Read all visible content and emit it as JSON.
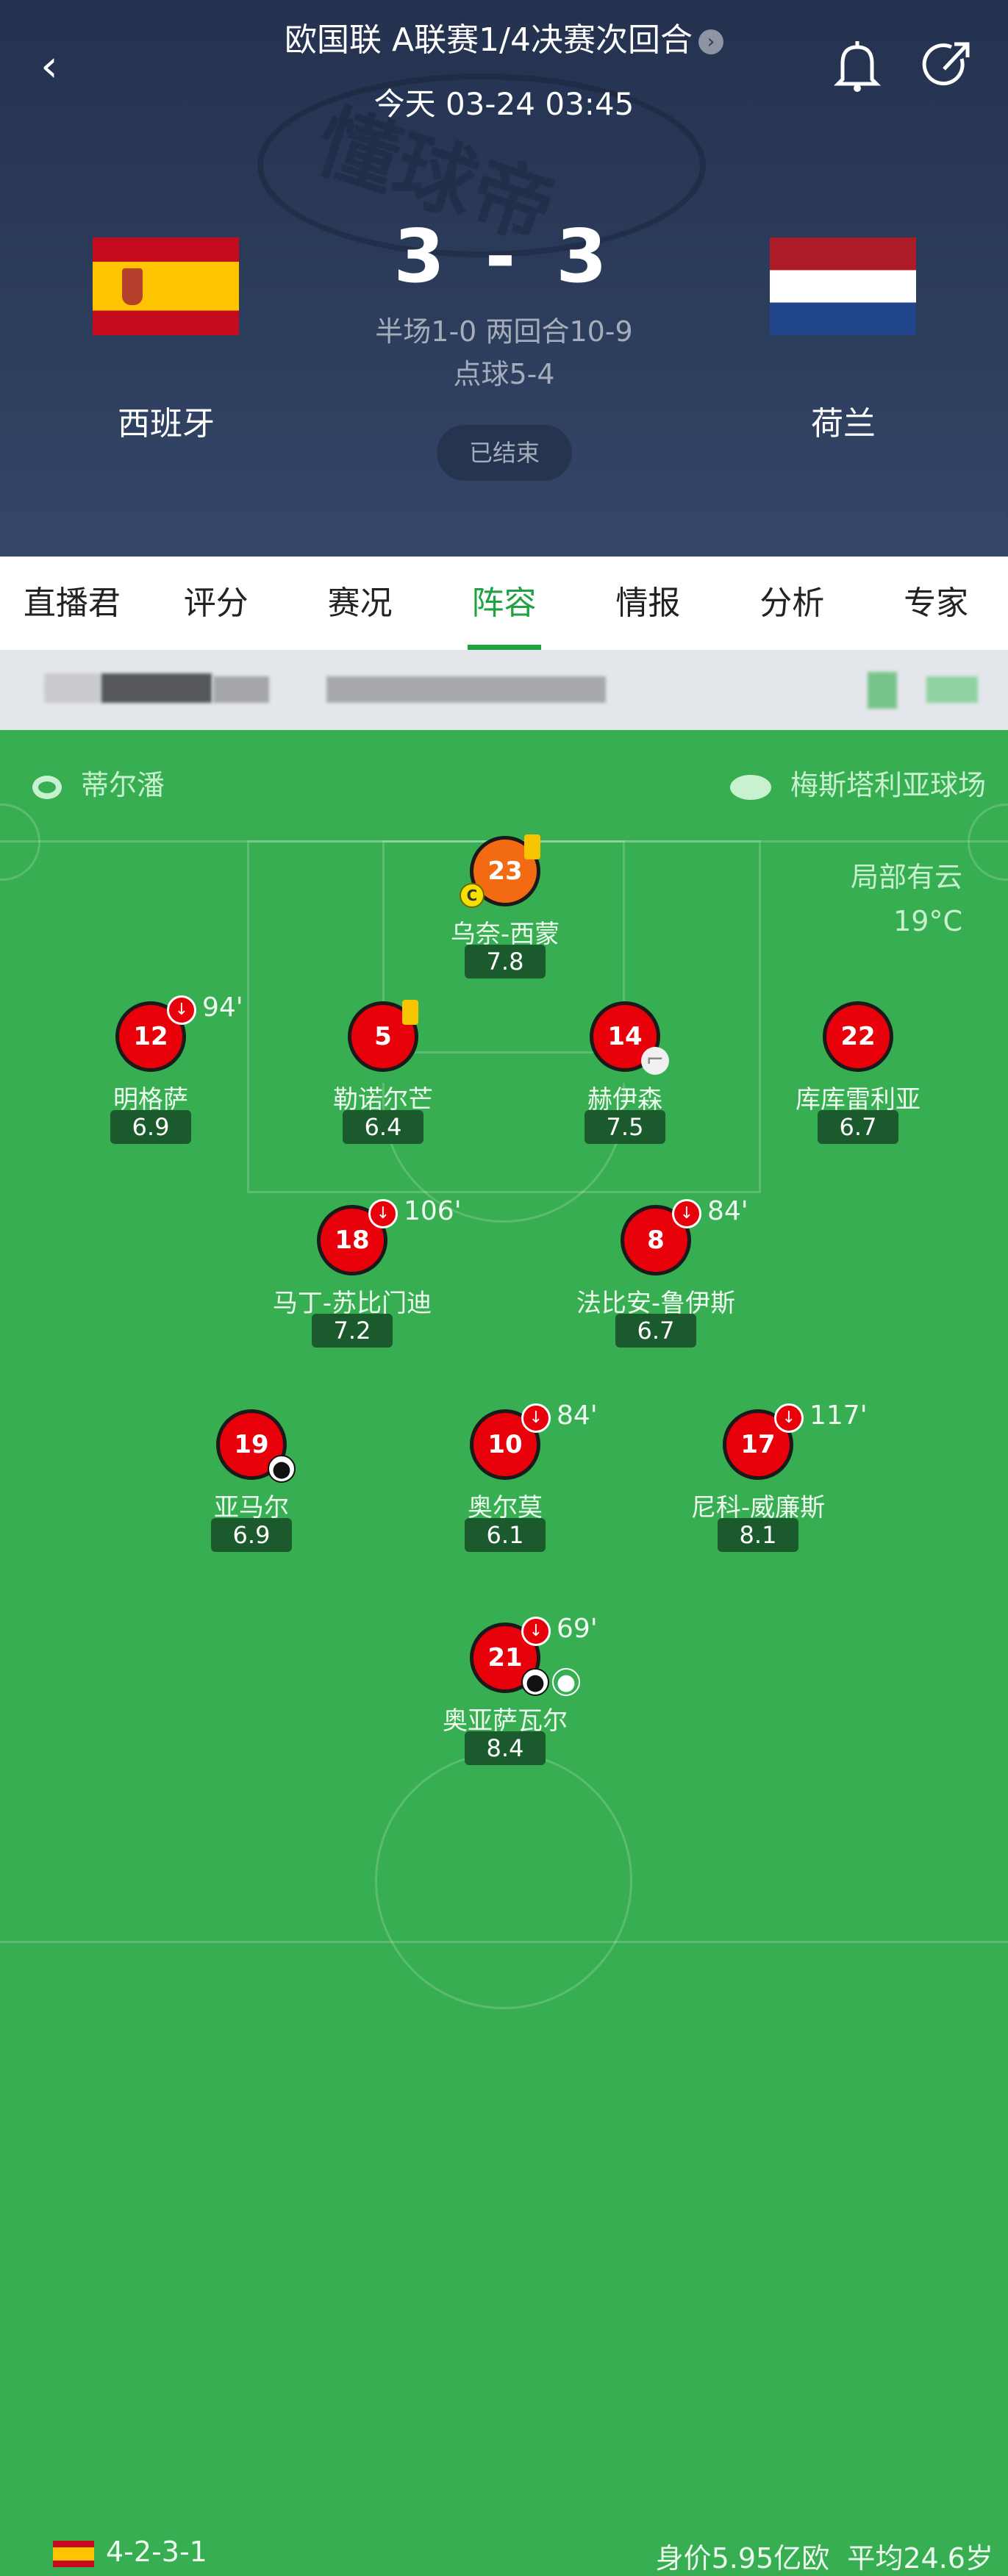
{
  "header": {
    "title": "欧国联 A联赛1/4决赛次回合",
    "time": "今天 03-24 03:45",
    "home": "西班牙",
    "away": "荷兰",
    "score_home": "3",
    "score_sep": "-",
    "score_away": "3",
    "detail1": "半场1-0 两回合10-9",
    "detail2": "点球5-4",
    "status": "已结束",
    "watermark": "懂球帝"
  },
  "tabs": [
    {
      "label": "直播君"
    },
    {
      "label": "评分"
    },
    {
      "label": "赛况"
    },
    {
      "label": "阵容",
      "active": true
    },
    {
      "label": "情报"
    },
    {
      "label": "分析"
    },
    {
      "label": "专家"
    }
  ],
  "match_info": {
    "referee": "蒂尔潘",
    "stadium": "梅斯塔利亚球场",
    "weather": "局部有云",
    "temperature": "19°C"
  },
  "players": [
    {
      "number": "23",
      "name": "乌奈-西蒙",
      "rating": "7.8",
      "gk": true,
      "yellow": true,
      "captain": true
    },
    {
      "number": "12",
      "name": "明格萨",
      "rating": "6.9",
      "sub_off": "94'"
    },
    {
      "number": "5",
      "name": "勒诺尔芒",
      "rating": "6.4",
      "yellow": true
    },
    {
      "number": "14",
      "name": "赫伊森",
      "rating": "7.5",
      "assist": true
    },
    {
      "number": "22",
      "name": "库库雷利亚",
      "rating": "6.7"
    },
    {
      "number": "18",
      "name": "马丁-苏比门迪",
      "rating": "7.2",
      "sub_off": "106'"
    },
    {
      "number": "8",
      "name": "法比安-鲁伊斯",
      "rating": "6.7",
      "sub_off": "84'"
    },
    {
      "number": "19",
      "name": "亚马尔",
      "rating": "6.9",
      "goal": true
    },
    {
      "number": "10",
      "name": "奥尔莫",
      "rating": "6.1",
      "sub_off": "84'"
    },
    {
      "number": "17",
      "name": "尼科-威廉斯",
      "rating": "8.1",
      "sub_off": "117'"
    },
    {
      "number": "21",
      "name": "奥亚萨瓦尔",
      "rating": "8.4",
      "sub_off": "69'",
      "goal": true,
      "penalty": true
    }
  ],
  "footer": {
    "formation": "4-2-3-1",
    "value": "身价5.95亿欧",
    "avg_age": "平均24.6岁"
  },
  "colors": {
    "pitch": "#38ae52",
    "accent": "#1fa243",
    "player": "#e8000b",
    "goalkeeper": "#f26a12"
  }
}
